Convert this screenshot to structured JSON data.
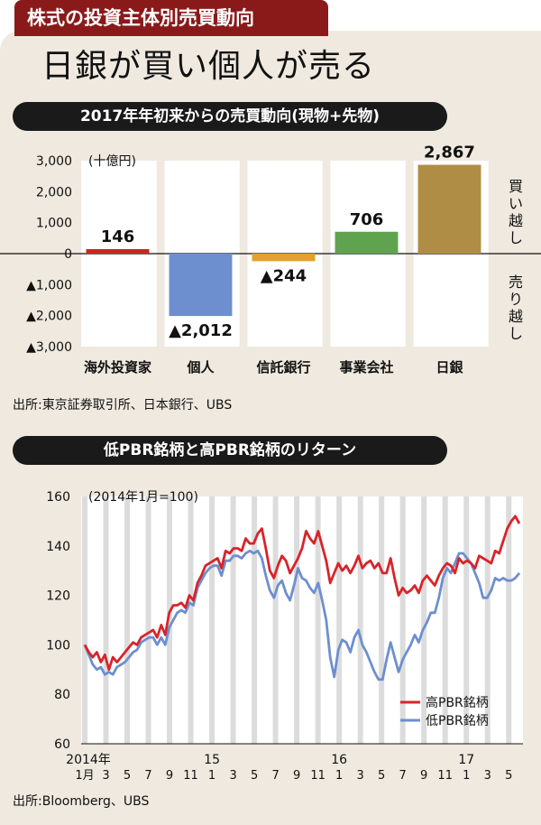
{
  "header": {
    "section_tab": "株式の投資主体別売買動向",
    "headline": "日銀が買い個人が売る"
  },
  "chart_data": [
    {
      "type": "bar",
      "title": "2017年年初来からの売買動向(現物+先物)",
      "unit_label": "(十億円)",
      "categories": [
        "海外投資家",
        "個人",
        "信託銀行",
        "事業会社",
        "日銀"
      ],
      "values": [
        146,
        -2012,
        -244,
        706,
        2867
      ],
      "value_labels": [
        "146",
        "▲2,012",
        "▲244",
        "706",
        "2,867"
      ],
      "colors": [
        "#c8281e",
        "#6d8fcf",
        "#e3a02e",
        "#5fa34e",
        "#b08d45"
      ],
      "ylim": [
        -3000,
        3000
      ],
      "yticks": [
        3000,
        2000,
        1000,
        0,
        -1000,
        -2000,
        -3000
      ],
      "ytick_labels": [
        "3,000",
        "2,000",
        "1,000",
        "0",
        "▲1,000",
        "▲2,000",
        "▲3,000"
      ],
      "right_labels": {
        "buy": "買い越し",
        "sell": "売り越し"
      },
      "source": "出所:東京証券取引所、日本銀行、UBS"
    },
    {
      "type": "line",
      "title": "低PBR銘柄と高PBR銘柄のリターン",
      "unit_label": "(2014年1月=100)",
      "ylim": [
        60,
        160
      ],
      "yticks": [
        60,
        80,
        100,
        120,
        140,
        160
      ],
      "x_tick_labels": [
        "1月",
        "3",
        "5",
        "7",
        "9",
        "11",
        "1",
        "3",
        "5",
        "7",
        "9",
        "11",
        "1",
        "3",
        "5",
        "7",
        "9",
        "11",
        "1",
        "3",
        "5"
      ],
      "year_labels": [
        "2014年",
        "15",
        "16",
        "17"
      ],
      "grid": "alternating vertical bands",
      "legend_position": "bottom-right",
      "series": [
        {
          "name": "高PBR銘柄",
          "color": "#d9232a",
          "values": [
            100,
            97,
            95,
            97,
            93,
            96,
            90,
            95,
            93,
            95,
            97,
            99,
            101,
            100,
            103,
            104,
            105,
            106,
            103,
            108,
            104,
            113,
            116,
            116,
            117,
            115,
            120,
            118,
            125,
            128,
            132,
            133,
            134,
            135,
            131,
            138,
            137,
            139,
            139,
            138,
            143,
            141,
            141,
            145,
            147,
            139,
            130,
            127,
            132,
            136,
            134,
            129,
            132,
            135,
            139,
            146,
            143,
            141,
            146,
            140,
            134,
            125,
            129,
            133,
            130,
            132,
            129,
            132,
            136,
            131,
            133,
            134,
            131,
            133,
            129,
            129,
            135,
            127,
            120,
            123,
            121,
            122,
            124,
            121,
            126,
            128,
            126,
            124,
            128,
            131,
            133,
            132,
            129,
            135,
            133,
            134,
            133,
            131,
            136,
            135,
            134,
            133,
            138,
            137,
            142,
            147,
            150,
            152,
            149
          ]
        },
        {
          "name": "低PBR銘柄",
          "color": "#6d8fcf",
          "values": [
            100,
            96,
            92,
            90,
            91,
            88,
            89,
            88,
            91,
            92,
            93,
            95,
            97,
            98,
            101,
            102,
            103,
            103,
            100,
            103,
            100,
            107,
            110,
            113,
            114,
            113,
            117,
            116,
            123,
            126,
            129,
            131,
            132,
            132,
            128,
            134,
            134,
            136,
            136,
            135,
            137,
            138,
            137,
            138,
            135,
            128,
            122,
            119,
            124,
            126,
            121,
            118,
            124,
            131,
            127,
            126,
            123,
            121,
            125,
            118,
            110,
            95,
            87,
            98,
            102,
            101,
            97,
            103,
            106,
            100,
            97,
            93,
            89,
            86,
            86,
            94,
            101,
            95,
            89,
            94,
            97,
            100,
            104,
            101,
            106,
            109,
            113,
            113,
            119,
            127,
            131,
            129,
            133,
            137,
            137,
            135,
            133,
            129,
            125,
            119,
            119,
            122,
            127,
            126,
            127,
            126,
            126,
            127,
            129
          ]
        }
      ],
      "source": "出所:Bloomberg、UBS"
    }
  ]
}
